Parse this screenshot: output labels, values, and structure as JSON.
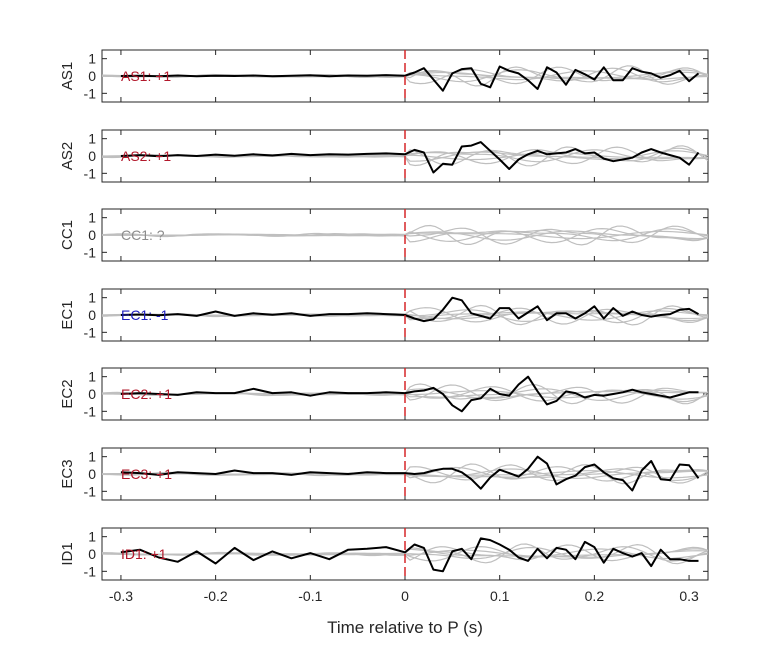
{
  "chart_data": {
    "type": "line",
    "xlabel": "Time relative to P (s)",
    "xlim": [
      -0.32,
      0.32
    ],
    "x_ticks": [
      "-0.3",
      "-0.2",
      "-0.1",
      "0",
      "0.1",
      "0.2",
      "0.3"
    ],
    "x_tick_values": [
      -0.3,
      -0.2,
      -0.1,
      0,
      0.1,
      0.2,
      0.3
    ],
    "ylim": [
      -1.5,
      1.5
    ],
    "y_ticks": [
      "1",
      "0",
      "-1"
    ],
    "y_tick_values": [
      1,
      0,
      -1
    ],
    "marker_x": 0,
    "colors": {
      "trace": "#000000",
      "background": "#bfbfbf",
      "marker": "#d62728",
      "positive": "#b2182b",
      "negative": "#1f1fbf",
      "unknown": "#8c8c8c"
    },
    "panels": [
      {
        "station": "AS1",
        "label": "AS1: +1",
        "polarity": "positive",
        "x": [
          -0.3,
          -0.28,
          -0.26,
          -0.24,
          -0.22,
          -0.2,
          -0.18,
          -0.16,
          -0.14,
          -0.12,
          -0.1,
          -0.08,
          -0.06,
          -0.04,
          -0.02,
          0,
          0.01,
          0.02,
          0.03,
          0.04,
          0.05,
          0.06,
          0.07,
          0.08,
          0.09,
          0.1,
          0.11,
          0.12,
          0.13,
          0.14,
          0.15,
          0.16,
          0.17,
          0.18,
          0.19,
          0.2,
          0.21,
          0.22,
          0.23,
          0.24,
          0.25,
          0.26,
          0.27,
          0.28,
          0.29,
          0.3,
          0.31
        ],
        "y": [
          0,
          0.02,
          -0.02,
          0.03,
          -0.01,
          0.02,
          0,
          0.03,
          -0.02,
          0.01,
          0.04,
          -0.01,
          0.03,
          0.01,
          0.05,
          0.02,
          0.2,
          0.45,
          -0.2,
          -0.85,
          0.15,
          0.4,
          0.45,
          -0.45,
          -0.65,
          0.55,
          0.3,
          0.15,
          -0.25,
          -0.75,
          0.5,
          0.2,
          -0.5,
          0.35,
          0.1,
          -0.2,
          0.5,
          -0.25,
          -0.25,
          0.45,
          0.25,
          0.15,
          -0.1,
          0.05,
          0.3,
          -0.3,
          0.15
        ]
      },
      {
        "station": "AS2",
        "label": "AS2: +1",
        "polarity": "positive",
        "x": [
          -0.3,
          -0.28,
          -0.26,
          -0.24,
          -0.22,
          -0.2,
          -0.18,
          -0.16,
          -0.14,
          -0.12,
          -0.1,
          -0.08,
          -0.06,
          -0.04,
          -0.02,
          0,
          0.01,
          0.02,
          0.03,
          0.04,
          0.05,
          0.06,
          0.07,
          0.08,
          0.09,
          0.1,
          0.11,
          0.12,
          0.13,
          0.14,
          0.15,
          0.16,
          0.17,
          0.18,
          0.19,
          0.2,
          0.21,
          0.22,
          0.23,
          0.24,
          0.25,
          0.26,
          0.27,
          0.28,
          0.29,
          0.3,
          0.31
        ],
        "y": [
          0,
          0.05,
          -0.02,
          0.05,
          0,
          0.08,
          0.02,
          0.1,
          0.03,
          0.12,
          0.05,
          0.1,
          0.08,
          0.12,
          0.15,
          0.1,
          0.35,
          0.2,
          -0.95,
          -0.45,
          -0.5,
          0.55,
          0.6,
          0.8,
          0.3,
          -0.2,
          -0.75,
          -0.2,
          0.1,
          0.3,
          0.1,
          0.15,
          0.2,
          0.4,
          0.15,
          0.2,
          -0.15,
          -0.3,
          -0.2,
          -0.1,
          0.2,
          0.4,
          0.2,
          0.05,
          -0.1,
          -0.5,
          0.2
        ]
      },
      {
        "station": "CC1",
        "label": "CC1: ?",
        "polarity": "unknown",
        "x": [],
        "y": []
      },
      {
        "station": "EC1",
        "label": "EC1: -1",
        "polarity": "negative",
        "x": [
          -0.3,
          -0.28,
          -0.26,
          -0.24,
          -0.22,
          -0.2,
          -0.18,
          -0.16,
          -0.14,
          -0.12,
          -0.1,
          -0.08,
          -0.06,
          -0.04,
          -0.02,
          0,
          0.01,
          0.02,
          0.03,
          0.04,
          0.05,
          0.06,
          0.07,
          0.08,
          0.09,
          0.1,
          0.11,
          0.12,
          0.13,
          0.14,
          0.15,
          0.16,
          0.17,
          0.18,
          0.19,
          0.2,
          0.21,
          0.22,
          0.23,
          0.24,
          0.25,
          0.26,
          0.27,
          0.28,
          0.29,
          0.3,
          0.31
        ],
        "y": [
          0,
          0.03,
          -0.02,
          0.05,
          -0.05,
          0.2,
          -0.05,
          0.1,
          0.02,
          0.1,
          -0.05,
          0.05,
          0.05,
          0.1,
          0.05,
          0.0,
          -0.2,
          -0.35,
          -0.25,
          0.3,
          1.0,
          0.85,
          0.1,
          -0.05,
          -0.2,
          0.4,
          0.4,
          -0.2,
          0.15,
          0.5,
          -0.3,
          0.1,
          0.1,
          -0.2,
          0.1,
          0.5,
          -0.2,
          0.4,
          -0.05,
          0.2,
          0.0,
          -0.1,
          0.0,
          0.05,
          0.3,
          0.35,
          0.05
        ]
      },
      {
        "station": "EC2",
        "label": "EC2: +1",
        "polarity": "positive",
        "x": [
          -0.3,
          -0.28,
          -0.26,
          -0.24,
          -0.22,
          -0.2,
          -0.18,
          -0.16,
          -0.14,
          -0.12,
          -0.1,
          -0.08,
          -0.06,
          -0.04,
          -0.02,
          0,
          0.01,
          0.02,
          0.03,
          0.04,
          0.05,
          0.06,
          0.07,
          0.08,
          0.09,
          0.1,
          0.11,
          0.12,
          0.13,
          0.14,
          0.15,
          0.16,
          0.17,
          0.18,
          0.19,
          0.2,
          0.21,
          0.22,
          0.23,
          0.24,
          0.25,
          0.26,
          0.27,
          0.28,
          0.29,
          0.3,
          0.31
        ],
        "y": [
          0,
          0.05,
          0,
          -0.05,
          0.1,
          0.05,
          0.05,
          0.3,
          0.05,
          0.1,
          -0.1,
          0.1,
          0.05,
          0.05,
          0.1,
          0.05,
          0.15,
          0.2,
          0.35,
          0.0,
          -0.65,
          -1.0,
          -0.35,
          -0.25,
          0.3,
          0.0,
          -0.1,
          0.55,
          1.0,
          0.15,
          -0.6,
          -0.4,
          0.15,
          0.05,
          -0.2,
          -0.05,
          -0.1,
          0.0,
          0.1,
          0.25,
          0.1,
          0.0,
          -0.1,
          -0.2,
          -0.05,
          0.1,
          0.1
        ]
      },
      {
        "station": "EC3",
        "label": "EC3: +1",
        "polarity": "positive",
        "x": [
          -0.3,
          -0.28,
          -0.26,
          -0.24,
          -0.22,
          -0.2,
          -0.18,
          -0.16,
          -0.14,
          -0.12,
          -0.1,
          -0.08,
          -0.06,
          -0.04,
          -0.02,
          0,
          0.01,
          0.02,
          0.03,
          0.04,
          0.05,
          0.06,
          0.07,
          0.08,
          0.09,
          0.1,
          0.11,
          0.12,
          0.13,
          0.14,
          0.15,
          0.16,
          0.17,
          0.18,
          0.19,
          0.2,
          0.21,
          0.22,
          0.23,
          0.24,
          0.25,
          0.26,
          0.27,
          0.28,
          0.29,
          0.3,
          0.31
        ],
        "y": [
          0.1,
          0.05,
          -0.05,
          0.1,
          0.05,
          0.0,
          0.2,
          0.05,
          0.05,
          -0.05,
          0.1,
          0.05,
          0.0,
          0.1,
          0.05,
          0.05,
          0.0,
          0.05,
          0.2,
          0.3,
          0.3,
          0.1,
          -0.3,
          -0.85,
          -0.2,
          0.25,
          0.05,
          -0.15,
          0.3,
          1.0,
          0.6,
          -0.6,
          -0.3,
          -0.1,
          0.4,
          0.55,
          0.1,
          -0.25,
          -0.35,
          -0.95,
          0.2,
          0.75,
          -0.3,
          -0.35,
          0.55,
          0.5,
          -0.25
        ]
      },
      {
        "station": "ID1",
        "label": "ID1: +1",
        "polarity": "positive",
        "x": [
          -0.3,
          -0.28,
          -0.26,
          -0.24,
          -0.22,
          -0.2,
          -0.18,
          -0.16,
          -0.14,
          -0.12,
          -0.1,
          -0.08,
          -0.06,
          -0.04,
          -0.02,
          0,
          0.01,
          0.02,
          0.03,
          0.04,
          0.05,
          0.06,
          0.07,
          0.08,
          0.09,
          0.1,
          0.11,
          0.12,
          0.13,
          0.14,
          0.15,
          0.16,
          0.17,
          0.18,
          0.19,
          0.2,
          0.21,
          0.22,
          0.23,
          0.24,
          0.25,
          0.26,
          0.27,
          0.28,
          0.29,
          0.3,
          0.31
        ],
        "y": [
          0.1,
          0.25,
          -0.2,
          -0.45,
          0.15,
          -0.55,
          0.35,
          -0.35,
          0.15,
          -0.25,
          0.05,
          -0.3,
          0.25,
          0.3,
          0.4,
          0.1,
          0.55,
          0.35,
          -0.9,
          -1.0,
          0.15,
          0.3,
          -0.3,
          0.9,
          0.8,
          0.55,
          0.25,
          -0.2,
          -0.4,
          0.3,
          -0.25,
          0.35,
          0.25,
          -0.3,
          0.7,
          0.4,
          -0.5,
          0.3,
          0.05,
          -0.15,
          0.05,
          -0.7,
          0.25,
          -0.3,
          -0.3,
          -0.4,
          -0.4
        ]
      }
    ]
  }
}
